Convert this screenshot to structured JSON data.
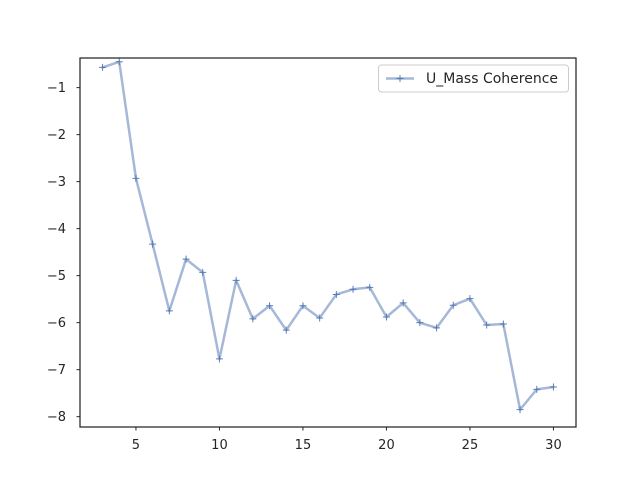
{
  "chart_data": {
    "type": "line",
    "title": "",
    "xlabel": "",
    "ylabel": "",
    "xlim": [
      1.65,
      31.35
    ],
    "ylim": [
      -8.22,
      -0.37
    ],
    "xticks": [
      5,
      10,
      15,
      20,
      25,
      30
    ],
    "yticks": [
      -8,
      -7,
      -6,
      -5,
      -4,
      -3,
      -2,
      -1
    ],
    "grid": false,
    "legend": {
      "position": "top-right"
    },
    "series": [
      {
        "name": "U_Mass Coherence",
        "color": "#4c72b0",
        "marker": "+",
        "x": [
          3,
          4,
          5,
          6,
          7,
          8,
          9,
          10,
          11,
          12,
          13,
          14,
          15,
          16,
          17,
          18,
          19,
          20,
          21,
          22,
          23,
          24,
          25,
          26,
          27,
          28,
          29,
          30
        ],
        "y": [
          -0.57,
          -0.45,
          -2.93,
          -4.33,
          -5.75,
          -4.65,
          -4.93,
          -6.77,
          -5.1,
          -5.92,
          -5.64,
          -6.16,
          -5.64,
          -5.9,
          -5.4,
          -5.29,
          -5.25,
          -5.88,
          -5.58,
          -6.0,
          -6.11,
          -5.63,
          -5.49,
          -6.05,
          -6.03,
          -7.85,
          -7.42,
          -7.37
        ]
      }
    ]
  }
}
